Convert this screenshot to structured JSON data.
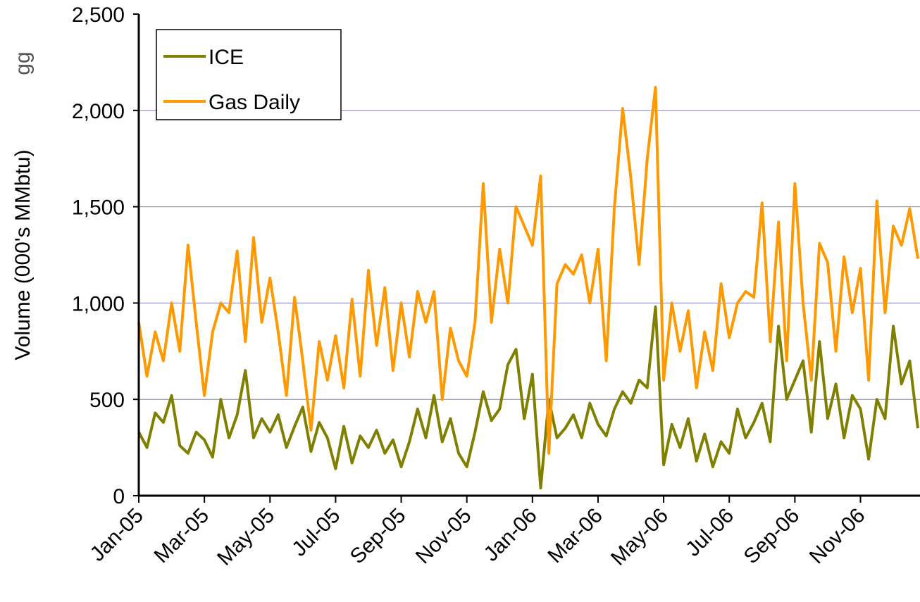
{
  "chart_data": {
    "type": "line",
    "y_label": "Volume (000's MMbtu)",
    "annotation": "gg",
    "categories": [
      "Jan-05",
      null,
      null,
      null,
      null,
      null,
      null,
      null,
      "Mar-05",
      null,
      null,
      null,
      null,
      null,
      null,
      null,
      "May-05",
      null,
      null,
      null,
      null,
      null,
      null,
      null,
      "Jul-05",
      null,
      null,
      null,
      null,
      null,
      null,
      null,
      "Sep-05",
      null,
      null,
      null,
      null,
      null,
      null,
      null,
      "Nov-05",
      null,
      null,
      null,
      null,
      null,
      null,
      null,
      "Jan-06",
      null,
      null,
      null,
      null,
      null,
      null,
      null,
      "Mar-06",
      null,
      null,
      null,
      null,
      null,
      null,
      null,
      "May-06",
      null,
      null,
      null,
      null,
      null,
      null,
      null,
      "Jul-06",
      null,
      null,
      null,
      null,
      null,
      null,
      null,
      "Sep-06",
      null,
      null,
      null,
      null,
      null,
      null,
      null,
      "Nov-06",
      null,
      null,
      null,
      null,
      null,
      null,
      null
    ],
    "series": [
      {
        "name": "ICE",
        "color": "#808000",
        "values": [
          330,
          250,
          430,
          380,
          520,
          260,
          220,
          330,
          290,
          200,
          500,
          300,
          420,
          650,
          300,
          400,
          330,
          420,
          250,
          360,
          460,
          230,
          380,
          300,
          140,
          360,
          170,
          310,
          250,
          340,
          220,
          290,
          150,
          280,
          450,
          300,
          520,
          280,
          400,
          220,
          150,
          330,
          540,
          390,
          450,
          680,
          760,
          400,
          630,
          40,
          500,
          300,
          350,
          420,
          300,
          480,
          370,
          310,
          450,
          540,
          480,
          600,
          560,
          980,
          160,
          370,
          250,
          400,
          180,
          320,
          150,
          280,
          220,
          450,
          300,
          380,
          480,
          280,
          880,
          500,
          600,
          700,
          330,
          800,
          400,
          580,
          300,
          520,
          450,
          190,
          500,
          400,
          880,
          580,
          700,
          350
        ]
      },
      {
        "name": "Gas Daily",
        "color": "#ff9900",
        "values": [
          900,
          620,
          850,
          700,
          1000,
          750,
          1300,
          900,
          520,
          850,
          1000,
          950,
          1270,
          800,
          1340,
          900,
          1130,
          850,
          520,
          1030,
          700,
          340,
          800,
          600,
          830,
          560,
          1020,
          620,
          1170,
          780,
          1080,
          650,
          1000,
          720,
          1060,
          900,
          1060,
          500,
          870,
          700,
          620,
          900,
          1620,
          900,
          1280,
          1000,
          1500,
          1400,
          1300,
          1660,
          220,
          1100,
          1200,
          1150,
          1250,
          1000,
          1280,
          700,
          1500,
          2010,
          1650,
          1200,
          1750,
          2120,
          600,
          1000,
          750,
          960,
          560,
          850,
          650,
          1100,
          820,
          1000,
          1060,
          1030,
          1520,
          800,
          1420,
          700,
          1620,
          1000,
          600,
          1310,
          1210,
          750,
          1240,
          950,
          1180,
          600,
          1530,
          950,
          1400,
          1300,
          1490,
          1230
        ]
      }
    ],
    "ylim": [
      0,
      2500
    ],
    "yticks": [
      0,
      500,
      {
        "value": 1000,
        "label": "1,000"
      },
      {
        "value": 1500,
        "label": "1,500"
      },
      {
        "value": 2000,
        "label": "2,000"
      },
      {
        "value": 2500,
        "label": "2,500"
      }
    ],
    "grid": true,
    "legend": "upper-left"
  }
}
